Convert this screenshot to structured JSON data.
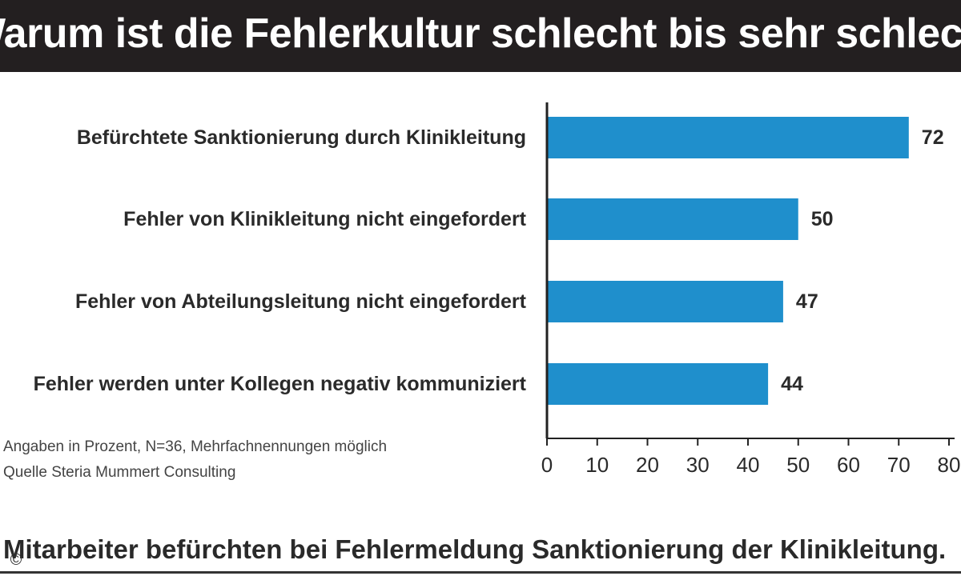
{
  "header": {
    "title": "Warum ist die Fehlerkultur schlecht bis sehr schlecht?"
  },
  "notes": {
    "basis": "Angaben in Prozent, N=36, Mehrfachnennungen möglich",
    "source": "Quelle Steria Mummert Consulting"
  },
  "caption": "Mitarbeiter befürchten bei Fehlermeldung Sanktionierung der Klinikleitung.",
  "copyright_symbol": "©",
  "colors": {
    "bar": "#1f8fcc",
    "title_background": "#231f20",
    "axis": "#222222"
  },
  "chart_data": {
    "type": "bar",
    "orientation": "horizontal",
    "categories": [
      "Befürchtete Sanktionierung durch Klinikleitung",
      "Fehler von Klinikleitung nicht eingefordert",
      "Fehler von Abteilungsleitung nicht eingefordert",
      "Fehler werden unter Kollegen negativ kommuniziert"
    ],
    "values": [
      72,
      50,
      47,
      44
    ],
    "data_labels": [
      "72",
      "50",
      "47",
      "44"
    ],
    "xlim": [
      0,
      80
    ],
    "xticks": [
      0,
      10,
      20,
      30,
      40,
      50,
      60,
      70,
      80
    ],
    "grid": false,
    "legend": "none"
  }
}
